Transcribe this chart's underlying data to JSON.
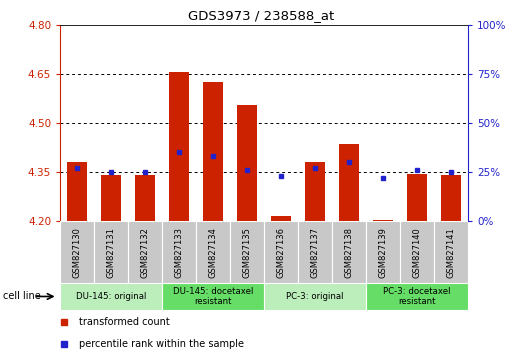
{
  "title": "GDS3973 / 238588_at",
  "samples": [
    "GSM827130",
    "GSM827131",
    "GSM827132",
    "GSM827133",
    "GSM827134",
    "GSM827135",
    "GSM827136",
    "GSM827137",
    "GSM827138",
    "GSM827139",
    "GSM827140",
    "GSM827141"
  ],
  "bar_values": [
    4.38,
    4.34,
    4.34,
    4.655,
    4.625,
    4.555,
    4.215,
    4.38,
    4.435,
    4.205,
    4.345,
    4.34
  ],
  "percentile_values": [
    27,
    25,
    25,
    35,
    33,
    26,
    23,
    27,
    30,
    22,
    26,
    25
  ],
  "bar_bottom": 4.2,
  "ymin": 4.2,
  "ymax": 4.8,
  "yticks_left": [
    4.2,
    4.35,
    4.5,
    4.65,
    4.8
  ],
  "yticks_right": [
    0,
    25,
    50,
    75,
    100
  ],
  "grid_lines": [
    4.35,
    4.5,
    4.65
  ],
  "bar_color": "#cc2200",
  "dot_color": "#2222cc",
  "cell_groups": [
    {
      "label": "DU-145: original",
      "start": 0,
      "end": 2,
      "color": "#bbeebb"
    },
    {
      "label": "DU-145: docetaxel\nresistant",
      "start": 3,
      "end": 5,
      "color": "#66dd66"
    },
    {
      "label": "PC-3: original",
      "start": 6,
      "end": 8,
      "color": "#bbeebb"
    },
    {
      "label": "PC-3: docetaxel\nresistant",
      "start": 9,
      "end": 11,
      "color": "#66dd66"
    }
  ],
  "legend_items": [
    {
      "label": "transformed count",
      "color": "#cc2200"
    },
    {
      "label": "percentile rank within the sample",
      "color": "#2222cc"
    }
  ],
  "tick_area_color": "#c8c8c8"
}
